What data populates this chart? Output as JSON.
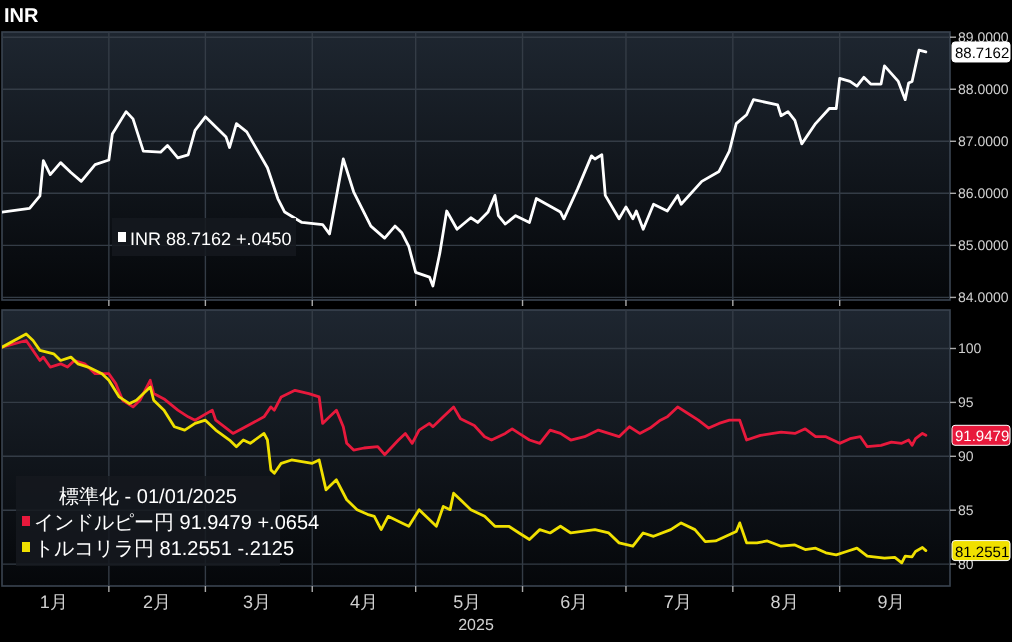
{
  "chart_data": [
    {
      "type": "line",
      "title": "INR",
      "xlim": [
        "2025-01-01",
        "2025-10-03"
      ],
      "ylim": [
        83.95,
        89.1
      ],
      "yticks": [
        {
          "value": 84,
          "label": "84.0000"
        },
        {
          "value": 85,
          "label": "85.0000"
        },
        {
          "value": 86,
          "label": "86.0000"
        },
        {
          "value": 87,
          "label": "87.0000"
        },
        {
          "value": 88,
          "label": "88.0000"
        },
        {
          "value": 89,
          "label": "89.0000"
        }
      ],
      "xticks": [
        {
          "value": "2025-02-01",
          "label": null
        },
        {
          "value": "2025-03-01",
          "label": null
        },
        {
          "value": "2025-04-01",
          "label": null
        },
        {
          "value": "2025-05-01",
          "label": null
        },
        {
          "value": "2025-06-01",
          "label": null
        },
        {
          "value": "2025-07-01",
          "label": null
        },
        {
          "value": "2025-08-01",
          "label": null
        },
        {
          "value": "2025-09-01",
          "label": null
        }
      ],
      "tick_labels": "y",
      "grid": true,
      "legend": "bottom left",
      "annotations": [
        {
          "text": "88.7162",
          "x": "2025-09-26",
          "y": 88.7162
        }
      ],
      "series": [
        {
          "name": "INR 88.7162 +.0450",
          "color": "#ffffff",
          "x": [
            "2025-01-01",
            "2025-01-09",
            "2025-01-12",
            "2025-01-13",
            "2025-01-15",
            "2025-01-18",
            "2025-01-21",
            "2025-01-24",
            "2025-01-28",
            "2025-02-01",
            "2025-02-02",
            "2025-02-06",
            "2025-02-08",
            "2025-02-11",
            "2025-02-16",
            "2025-02-18",
            "2025-02-21",
            "2025-02-24",
            "2025-02-26",
            "2025-03-01",
            "2025-03-05",
            "2025-03-07",
            "2025-03-08",
            "2025-03-10",
            "2025-03-13",
            "2025-03-19",
            "2025-03-22",
            "2025-03-24",
            "2025-03-29",
            "2025-04-04",
            "2025-04-06",
            "2025-04-10",
            "2025-04-13",
            "2025-04-18",
            "2025-04-22",
            "2025-04-25",
            "2025-04-27",
            "2025-04-29",
            "2025-05-01",
            "2025-05-05",
            "2025-05-06",
            "2025-05-08",
            "2025-05-10",
            "2025-05-13",
            "2025-05-17",
            "2025-05-19",
            "2025-05-22",
            "2025-05-24",
            "2025-05-25",
            "2025-05-27",
            "2025-05-30",
            "2025-06-03",
            "2025-06-05",
            "2025-06-12",
            "2025-06-13",
            "2025-06-17",
            "2025-06-21",
            "2025-06-22",
            "2025-06-24",
            "2025-06-25",
            "2025-06-29",
            "2025-07-01",
            "2025-07-03",
            "2025-07-04",
            "2025-07-06",
            "2025-07-09",
            "2025-07-13",
            "2025-07-16",
            "2025-07-17",
            "2025-07-23",
            "2025-07-28",
            "2025-07-31",
            "2025-08-02",
            "2025-08-05",
            "2025-08-07",
            "2025-08-14",
            "2025-08-15",
            "2025-08-17",
            "2025-08-19",
            "2025-08-21",
            "2025-08-25",
            "2025-08-29",
            "2025-08-31",
            "2025-09-01",
            "2025-09-04",
            "2025-09-06",
            "2025-09-08",
            "2025-09-10",
            "2025-09-13",
            "2025-09-14",
            "2025-09-18",
            "2025-09-20",
            "2025-09-21",
            "2025-09-22",
            "2025-09-24",
            "2025-09-26"
          ],
          "values": [
            85.64,
            85.71,
            85.95,
            86.63,
            86.36,
            86.59,
            86.4,
            86.23,
            86.55,
            86.64,
            87.14,
            87.57,
            87.43,
            86.81,
            86.79,
            86.92,
            86.68,
            86.74,
            87.21,
            87.47,
            87.21,
            87.08,
            86.88,
            87.34,
            87.18,
            86.49,
            85.9,
            85.64,
            85.44,
            85.4,
            85.22,
            86.66,
            86.03,
            85.37,
            85.14,
            85.37,
            85.24,
            84.98,
            84.48,
            84.39,
            84.22,
            84.85,
            85.66,
            85.31,
            85.53,
            85.44,
            85.64,
            85.96,
            85.57,
            85.41,
            85.57,
            85.44,
            85.9,
            85.64,
            85.51,
            86.09,
            86.72,
            86.66,
            86.74,
            85.96,
            85.51,
            85.74,
            85.51,
            85.66,
            85.31,
            85.79,
            85.66,
            85.96,
            85.79,
            86.23,
            86.42,
            86.81,
            87.34,
            87.51,
            87.8,
            87.7,
            87.49,
            87.57,
            87.4,
            86.95,
            87.34,
            87.63,
            87.63,
            88.21,
            88.15,
            88.06,
            88.23,
            88.1,
            88.1,
            88.45,
            88.15,
            87.8,
            88.12,
            88.15,
            88.75,
            88.7162
          ]
        }
      ]
    },
    {
      "type": "line",
      "xlabel": "2025",
      "legend_title": "標準化 - 01/01/2025",
      "xlim": [
        "2025-01-01",
        "2025-10-03"
      ],
      "ylim": [
        77.97,
        103.57
      ],
      "yticks": [
        80,
        85,
        90,
        95,
        100
      ],
      "xticks": [
        {
          "value": "2025-01-16",
          "label": "1月"
        },
        {
          "value": "2025-02-01",
          "label": null
        },
        {
          "value": "2025-02-15",
          "label": "2月"
        },
        {
          "value": "2025-03-01",
          "label": null
        },
        {
          "value": "2025-03-16",
          "label": "3月"
        },
        {
          "value": "2025-04-01",
          "label": null
        },
        {
          "value": "2025-04-16",
          "label": "4月"
        },
        {
          "value": "2025-05-01",
          "label": null
        },
        {
          "value": "2025-05-16",
          "label": "5月"
        },
        {
          "value": "2025-06-01",
          "label": null
        },
        {
          "value": "2025-06-16",
          "label": "6月"
        },
        {
          "value": "2025-07-01",
          "label": null
        },
        {
          "value": "2025-07-16",
          "label": "7月"
        },
        {
          "value": "2025-08-01",
          "label": null
        },
        {
          "value": "2025-08-16",
          "label": "8月"
        },
        {
          "value": "2025-09-01",
          "label": null
        },
        {
          "value": "2025-09-16",
          "label": "9月"
        }
      ],
      "grid": true,
      "legend": "bottom left",
      "annotations": [
        {
          "text": "91.9479",
          "x": "2025-09-26",
          "y": 91.9479
        },
        {
          "text": "81.2551",
          "x": "2025-09-26",
          "y": 81.2551
        }
      ],
      "series": [
        {
          "name": "インドルピー円 91.9479 +.0654",
          "color": "#e8193c",
          "x": [
            "2025-01-01",
            "2025-01-08",
            "2025-01-12",
            "2025-01-13",
            "2025-01-15",
            "2025-01-18",
            "2025-01-20",
            "2025-01-22",
            "2025-01-25",
            "2025-01-28",
            "2025-02-01",
            "2025-02-03",
            "2025-02-05",
            "2025-02-08",
            "2025-02-10",
            "2025-02-13",
            "2025-02-14",
            "2025-02-17",
            "2025-02-21",
            "2025-02-24",
            "2025-02-26",
            "2025-03-03",
            "2025-03-04",
            "2025-03-09",
            "2025-03-12",
            "2025-03-18",
            "2025-03-20",
            "2025-03-21",
            "2025-03-23",
            "2025-03-27",
            "2025-03-31",
            "2025-04-03",
            "2025-04-04",
            "2025-04-06",
            "2025-04-08",
            "2025-04-10",
            "2025-04-11",
            "2025-04-13",
            "2025-04-16",
            "2025-04-20",
            "2025-04-22",
            "2025-04-26",
            "2025-04-28",
            "2025-04-30",
            "2025-05-02",
            "2025-05-05",
            "2025-05-06",
            "2025-05-09",
            "2025-05-12",
            "2025-05-14",
            "2025-05-18",
            "2025-05-21",
            "2025-05-23",
            "2025-05-27",
            "2025-05-29",
            "2025-05-31",
            "2025-06-03",
            "2025-06-06",
            "2025-06-09",
            "2025-06-12",
            "2025-06-15",
            "2025-06-19",
            "2025-06-23",
            "2025-06-26",
            "2025-06-29",
            "2025-07-02",
            "2025-07-05",
            "2025-07-08",
            "2025-07-11",
            "2025-07-13",
            "2025-07-16",
            "2025-07-19",
            "2025-07-22",
            "2025-07-25",
            "2025-07-28",
            "2025-07-31",
            "2025-08-03",
            "2025-08-05",
            "2025-08-09",
            "2025-08-15",
            "2025-08-19",
            "2025-08-22",
            "2025-08-25",
            "2025-08-28",
            "2025-09-01",
            "2025-09-04",
            "2025-09-07",
            "2025-09-09",
            "2025-09-13",
            "2025-09-16",
            "2025-09-19",
            "2025-09-21",
            "2025-09-22",
            "2025-09-23",
            "2025-09-25",
            "2025-09-26"
          ],
          "values": [
            100.12,
            100.74,
            98.89,
            99.2,
            98.28,
            98.58,
            98.28,
            98.89,
            98.58,
            97.66,
            97.66,
            96.74,
            95.2,
            94.58,
            95.2,
            97.05,
            95.82,
            95.32,
            94.28,
            93.66,
            93.35,
            94.28,
            93.35,
            92.12,
            92.62,
            93.66,
            94.58,
            94.28,
            95.51,
            96.12,
            95.82,
            95.51,
            93.05,
            93.66,
            94.28,
            92.74,
            91.2,
            90.58,
            90.77,
            90.89,
            90.15,
            91.51,
            92.12,
            91.2,
            92.43,
            93.05,
            92.74,
            93.66,
            94.58,
            93.48,
            92.86,
            91.82,
            91.51,
            92.12,
            92.55,
            92.12,
            91.51,
            91.2,
            92.43,
            92.12,
            91.51,
            91.82,
            92.43,
            92.12,
            91.82,
            92.74,
            92.12,
            92.62,
            93.35,
            93.66,
            94.58,
            93.97,
            93.35,
            92.62,
            93.05,
            93.35,
            93.35,
            91.51,
            91.94,
            92.25,
            92.12,
            92.55,
            91.82,
            91.82,
            91.2,
            91.63,
            91.82,
            90.89,
            91.02,
            91.32,
            91.2,
            91.51,
            91.02,
            91.63,
            92.12,
            91.9479
          ]
        },
        {
          "name": "トルコリラ円 81.2551 -.2125",
          "color": "#f0e000",
          "x": [
            "2025-01-01",
            "2025-01-08",
            "2025-01-10",
            "2025-01-12",
            "2025-01-16",
            "2025-01-18",
            "2025-01-21",
            "2025-01-23",
            "2025-01-26",
            "2025-01-30",
            "2025-02-01",
            "2025-02-04",
            "2025-02-07",
            "2025-02-09",
            "2025-02-13",
            "2025-02-14",
            "2025-02-17",
            "2025-02-20",
            "2025-02-23",
            "2025-02-26",
            "2025-03-01",
            "2025-03-04",
            "2025-03-08",
            "2025-03-10",
            "2025-03-12",
            "2025-03-14",
            "2025-03-18",
            "2025-03-19",
            "2025-03-20",
            "2025-03-21",
            "2025-03-23",
            "2025-03-26",
            "2025-04-01",
            "2025-04-03",
            "2025-04-05",
            "2025-04-08",
            "2025-04-11",
            "2025-04-14",
            "2025-04-17",
            "2025-04-19",
            "2025-04-21",
            "2025-04-23",
            "2025-04-27",
            "2025-04-29",
            "2025-05-02",
            "2025-05-07",
            "2025-05-09",
            "2025-05-11",
            "2025-05-12",
            "2025-05-14",
            "2025-05-17",
            "2025-05-21",
            "2025-05-24",
            "2025-05-28",
            "2025-05-31",
            "2025-06-03",
            "2025-06-06",
            "2025-06-09",
            "2025-06-12",
            "2025-06-15",
            "2025-06-22",
            "2025-06-26",
            "2025-06-29",
            "2025-07-03",
            "2025-07-06",
            "2025-07-09",
            "2025-07-14",
            "2025-07-17",
            "2025-07-21",
            "2025-07-24",
            "2025-07-27",
            "2025-08-02",
            "2025-08-03",
            "2025-08-05",
            "2025-08-08",
            "2025-08-11",
            "2025-08-15",
            "2025-08-19",
            "2025-08-22",
            "2025-08-25",
            "2025-08-28",
            "2025-08-31",
            "2025-09-03",
            "2025-09-06",
            "2025-09-09",
            "2025-09-14",
            "2025-09-17",
            "2025-09-19",
            "2025-09-20",
            "2025-09-22",
            "2025-09-23",
            "2025-09-25",
            "2025-09-26"
          ],
          "values": [
            100.12,
            101.35,
            100.74,
            99.82,
            99.51,
            98.89,
            99.2,
            98.58,
            98.28,
            97.66,
            97.05,
            95.51,
            94.89,
            95.2,
            96.43,
            95.2,
            94.28,
            92.74,
            92.43,
            93.05,
            93.35,
            92.43,
            91.51,
            90.89,
            91.51,
            91.2,
            92.12,
            91.51,
            88.74,
            88.43,
            89.35,
            89.66,
            89.35,
            89.66,
            86.89,
            87.82,
            85.97,
            85.05,
            84.62,
            84.43,
            83.2,
            84.43,
            83.82,
            83.51,
            85.05,
            83.51,
            85.35,
            85.05,
            86.58,
            85.97,
            85.05,
            84.43,
            83.51,
            83.51,
            82.89,
            82.28,
            83.2,
            82.89,
            83.51,
            82.89,
            83.2,
            82.89,
            81.97,
            81.66,
            82.89,
            82.58,
            83.2,
            83.82,
            83.2,
            82.09,
            82.15,
            83.02,
            83.82,
            81.97,
            81.97,
            82.15,
            81.66,
            81.78,
            81.35,
            81.48,
            81.05,
            80.86,
            81.17,
            81.48,
            80.74,
            80.55,
            80.62,
            80.12,
            80.74,
            80.68,
            81.17,
            81.54,
            81.2551
          ]
        }
      ]
    }
  ]
}
